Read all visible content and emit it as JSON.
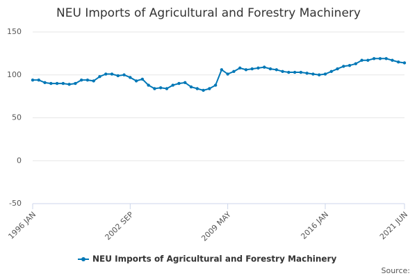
{
  "chart_data": {
    "type": "line",
    "title": "NEU Imports of Agricultural and Forestry Machinery",
    "source": "Source:",
    "categories": [
      "1996 JAN",
      null,
      null,
      null,
      null,
      null,
      null,
      null,
      null,
      null,
      null,
      null,
      null,
      null,
      null,
      null,
      "2002 SEP",
      null,
      null,
      null,
      null,
      null,
      null,
      null,
      null,
      null,
      null,
      null,
      null,
      null,
      null,
      null,
      "2009 MAY",
      null,
      null,
      null,
      null,
      null,
      null,
      null,
      null,
      null,
      null,
      null,
      null,
      null,
      null,
      null,
      "2016 JAN",
      null,
      null,
      null,
      null,
      null,
      null,
      null,
      null,
      null,
      null,
      null,
      null,
      "2021 JUN"
    ],
    "series": [
      {
        "name": "NEU Imports of Agricultural and Forestry Machinery",
        "color": "#0077b6",
        "values": [
          94,
          94,
          91,
          90,
          90,
          90,
          89,
          90,
          94,
          94,
          93,
          98,
          101,
          101,
          99,
          100,
          97,
          93,
          95,
          88,
          84,
          85,
          84,
          88,
          90,
          91,
          86,
          84,
          82,
          84,
          88,
          106,
          101,
          104,
          108,
          106,
          107,
          108,
          109,
          107,
          106,
          104,
          103,
          103,
          103,
          102,
          101,
          100,
          101,
          104,
          107,
          110,
          111,
          113,
          117,
          117,
          119,
          119,
          119,
          117,
          115,
          114
        ]
      }
    ],
    "ylim": [
      -50,
      150
    ],
    "yticks": [
      -50,
      0,
      50,
      100,
      150
    ],
    "grid": true
  }
}
